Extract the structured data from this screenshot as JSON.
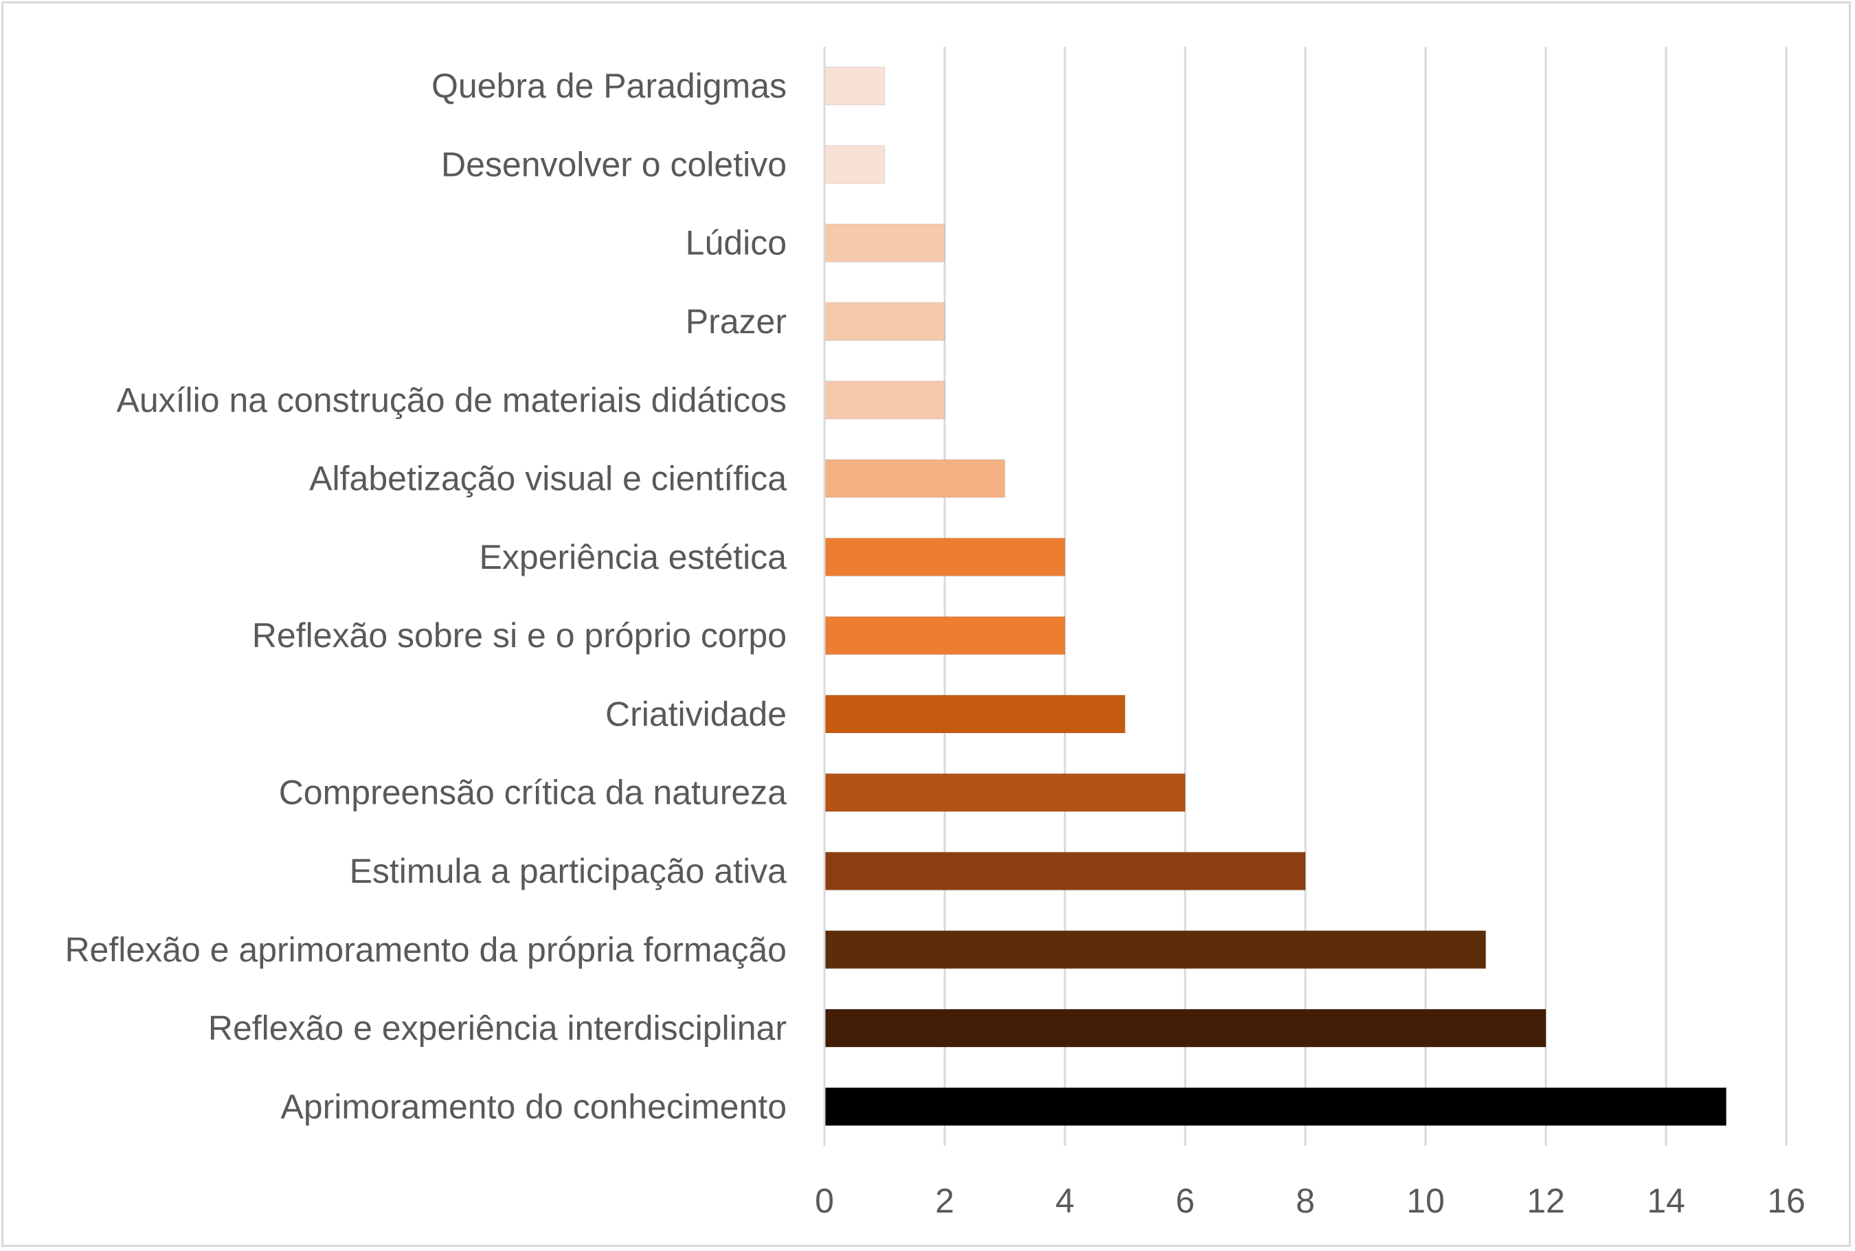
{
  "chart_data": {
    "type": "bar",
    "orientation": "horizontal",
    "categories": [
      "Quebra de Paradigmas",
      "Desenvolver o coletivo",
      "Lúdico",
      "Prazer",
      "Auxílio na construção de materiais didáticos",
      "Alfabetização visual e científica",
      "Experiência estética",
      "Reflexão sobre si e o próprio corpo",
      "Criatividade",
      "Compreensão crítica da natureza",
      "Estimula a participação ativa",
      "Reflexão e aprimoramento da própria formação",
      "Reflexão e experiência interdisciplinar",
      "Aprimoramento do conhecimento"
    ],
    "values": [
      1,
      1,
      2,
      2,
      2,
      3,
      4,
      4,
      5,
      6,
      8,
      11,
      12,
      15
    ],
    "colors": [
      "#f8e1d5",
      "#f8e1d5",
      "#f7c9ac",
      "#f7c9ac",
      "#f7c9ac",
      "#f4b183",
      "#ed7d31",
      "#ed7d31",
      "#c55a11",
      "#b35315",
      "#8b3f10",
      "#5d2c0b",
      "#421e06",
      "#000000"
    ],
    "title": "",
    "xlabel": "",
    "ylabel": "",
    "xlim": [
      0,
      16
    ],
    "xticks": [
      "0",
      "2",
      "4",
      "6",
      "8",
      "10",
      "12",
      "14",
      "16"
    ],
    "grid": true,
    "legend": "none"
  }
}
